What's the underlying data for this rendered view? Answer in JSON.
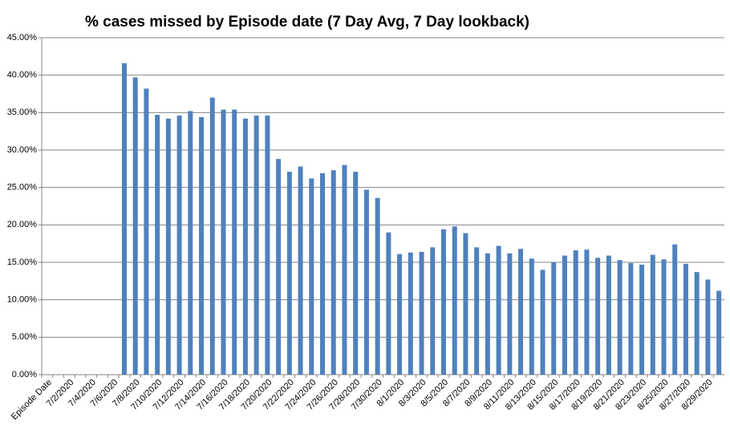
{
  "chart_data": {
    "type": "bar",
    "title": "% cases missed by Episode date (7 Day Avg, 7 Day lookback)",
    "categories": [
      "Episode Date",
      null,
      "7/2/2020",
      null,
      "7/4/2020",
      null,
      "7/6/2020",
      null,
      "7/8/2020",
      null,
      "7/10/2020",
      null,
      "7/12/2020",
      null,
      "7/14/2020",
      null,
      "7/16/2020",
      null,
      "7/18/2020",
      null,
      "7/20/2020",
      null,
      "7/22/2020",
      null,
      "7/24/2020",
      null,
      "7/26/2020",
      null,
      "7/28/2020",
      null,
      "7/30/2020",
      null,
      "8/1/2020",
      null,
      "8/3/2020",
      null,
      "8/5/2020",
      null,
      "8/7/2020",
      null,
      "8/9/2020",
      null,
      "8/11/2020",
      null,
      "8/13/2020",
      null,
      "8/15/2020",
      null,
      "8/17/2020",
      null,
      "8/19/2020",
      null,
      "8/21/2020",
      null,
      "8/23/2020",
      null,
      "8/25/2020",
      null,
      "8/27/2020",
      null,
      "8/29/2020",
      null
    ],
    "values": [
      null,
      null,
      null,
      null,
      null,
      null,
      null,
      41.6,
      39.7,
      38.2,
      34.7,
      34.2,
      34.6,
      35.2,
      34.4,
      37.0,
      35.4,
      35.4,
      34.2,
      34.6,
      34.6,
      28.8,
      27.1,
      27.8,
      26.2,
      26.9,
      27.3,
      28.0,
      27.1,
      24.7,
      23.6,
      19.0,
      16.1,
      16.3,
      16.4,
      17.0,
      19.4,
      19.8,
      18.9,
      17.0,
      16.2,
      17.2,
      16.2,
      16.8,
      15.5,
      14.0,
      15.0,
      15.9,
      16.6,
      16.7,
      15.6,
      15.9,
      15.3,
      14.9,
      14.7,
      16.0,
      15.4,
      17.4,
      14.8,
      13.7,
      12.7,
      11.2
    ],
    "color": "#4f81bd",
    "ylim": [
      0,
      45
    ],
    "yticks": [
      {
        "value": 0,
        "label": "0.00%"
      },
      {
        "value": 5,
        "label": "5.00%"
      },
      {
        "value": 10,
        "label": "10.00%"
      },
      {
        "value": 15,
        "label": "15.00%"
      },
      {
        "value": 20,
        "label": "20.00%"
      },
      {
        "value": 25,
        "label": "25.00%"
      },
      {
        "value": 30,
        "label": "30.00%"
      },
      {
        "value": 35,
        "label": "35.00%"
      },
      {
        "value": 40,
        "label": "40.00%"
      },
      {
        "value": 45,
        "label": "45.00%"
      }
    ],
    "grid": true
  }
}
